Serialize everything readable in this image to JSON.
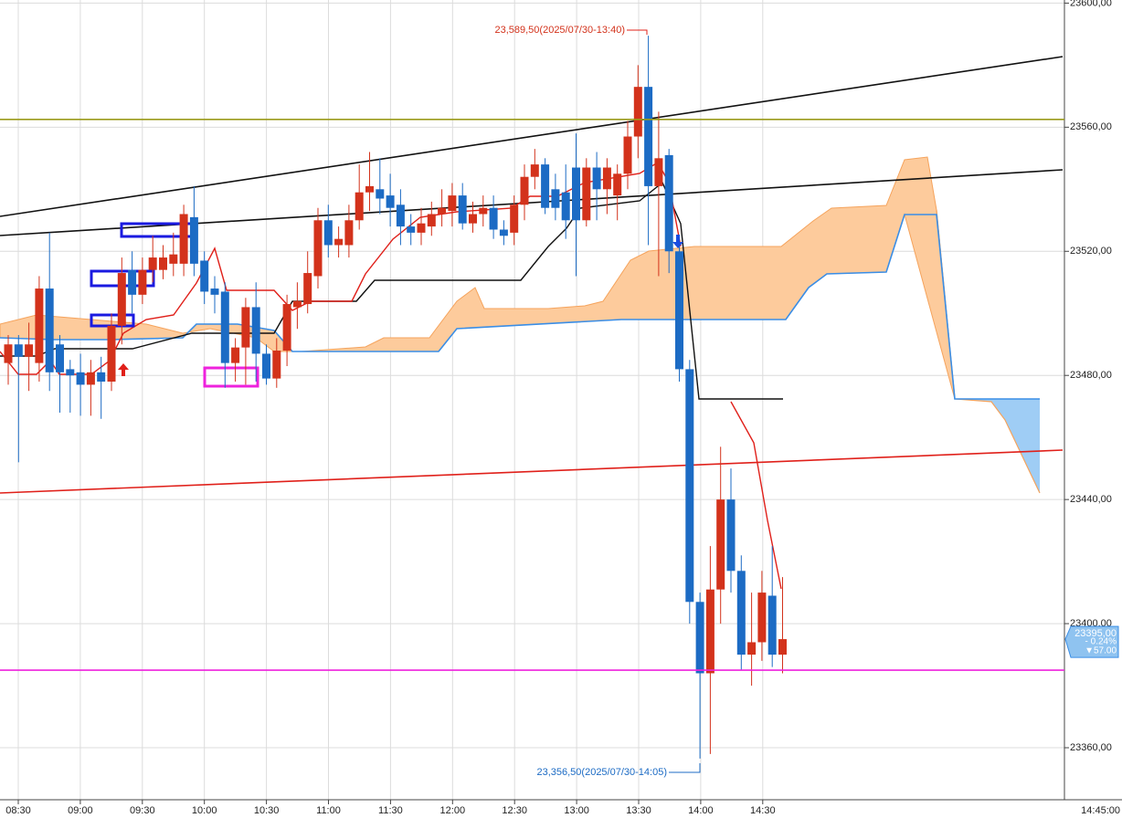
{
  "chart_data": {
    "type": "candlestick",
    "up_color": "#d3321b",
    "down_color": "#1c6bc4",
    "ylim": [
      23345,
      23601
    ],
    "yticks": [
      {
        "value": 23360,
        "label": "23360,00"
      },
      {
        "value": 23400,
        "label": "23400,00"
      },
      {
        "value": 23440,
        "label": "23440,00"
      },
      {
        "value": 23480,
        "label": "23480,00"
      },
      {
        "value": 23520,
        "label": "23520,00"
      },
      {
        "value": 23560,
        "label": "23560,00"
      },
      {
        "value": 23600,
        "label": "23600,00"
      }
    ],
    "x_labels": [
      "08:30",
      "09:00",
      "09:30",
      "10:00",
      "10:30",
      "11:00",
      "11:30",
      "12:00",
      "12:30",
      "13:00",
      "13:30",
      "14:00",
      "14:30"
    ],
    "x_end_label": "14:45:00",
    "grid": true,
    "open": [
      23484,
      23490,
      23486,
      23484,
      23508,
      23490,
      23482,
      23481,
      23477,
      23481,
      23478,
      23496,
      23514,
      23506,
      23514,
      23514,
      23516,
      23516,
      23531,
      23517,
      23508,
      23507,
      23484,
      23489,
      23502,
      23487,
      23479,
      23488,
      23502,
      23503,
      23512,
      23530,
      23522,
      23522,
      23530,
      23539,
      23540,
      23538,
      23535,
      23528,
      23526,
      23528,
      23532,
      23533,
      23538,
      23529,
      23532,
      23534,
      23527,
      23526,
      23535,
      23544,
      23548,
      23540,
      23539,
      23547,
      23530,
      23547,
      23540,
      23538,
      23545,
      23557,
      23573,
      23541,
      23551,
      23520,
      23482,
      23407,
      23384,
      23411,
      23440,
      23417,
      23390,
      23394,
      23409,
      23390
    ],
    "high": [
      23493,
      23493,
      23497,
      23512,
      23526,
      23493,
      23485,
      23487,
      23485,
      23486,
      23500,
      23518,
      23520,
      23518,
      23525,
      23522,
      23526,
      23535,
      23541,
      23520,
      23512,
      23510,
      23492,
      23505,
      23510,
      23490,
      23492,
      23506,
      23510,
      23520,
      23534,
      23535,
      23528,
      23535,
      23548,
      23552,
      23550,
      23545,
      23540,
      23532,
      23534,
      23536,
      23540,
      23542,
      23542,
      23536,
      23538,
      23538,
      23530,
      23538,
      23548,
      23553,
      23550,
      23545,
      23548,
      23558,
      23550,
      23552,
      23550,
      23548,
      23562,
      23580,
      23589.5,
      23565,
      23553,
      23522,
      23485,
      23410,
      23425,
      23457,
      23450,
      23422,
      23410,
      23417,
      23425,
      23415
    ],
    "low": [
      23477,
      23452,
      23475,
      23478,
      23475,
      23468,
      23468,
      23467,
      23467,
      23466,
      23475,
      23490,
      23500,
      23503,
      23510,
      23511,
      23512,
      23512,
      23512,
      23503,
      23500,
      23476,
      23478,
      23477,
      23478,
      23477,
      23476,
      23483,
      23495,
      23500,
      23508,
      23518,
      23518,
      23518,
      23527,
      23533,
      23532,
      23528,
      23522,
      23522,
      23522,
      23525,
      23528,
      23528,
      23527,
      23526,
      23528,
      23524,
      23522,
      23522,
      23530,
      23540,
      23532,
      23530,
      23524,
      23512,
      23528,
      23530,
      23532,
      23530,
      23540,
      23550,
      23522,
      23512,
      23513,
      23478,
      23400,
      23356.5,
      23358,
      23400,
      23410,
      23385,
      23380,
      23388,
      23386,
      23384
    ],
    "close": [
      23490,
      23486,
      23490,
      23508,
      23481,
      23481,
      23480,
      23477,
      23481,
      23478,
      23496,
      23513,
      23506,
      23514,
      23518,
      23518,
      23519,
      23532,
      23516,
      23507,
      23506,
      23484,
      23489,
      23502,
      23487,
      23479,
      23488,
      23503,
      23504,
      23513,
      23530,
      23522,
      23524,
      23530,
      23539,
      23541,
      23537,
      23534,
      23528,
      23526,
      23529,
      23532,
      23534,
      23538,
      23529,
      23532,
      23534,
      23527,
      23525,
      23535,
      23544,
      23548,
      23534,
      23534,
      23530,
      23530,
      23547,
      23540,
      23547,
      23545,
      23557,
      23573,
      23541,
      23550,
      23520,
      23482,
      23407,
      23384,
      23411,
      23440,
      23417,
      23390,
      23394,
      23410,
      23390,
      23395
    ],
    "price_lines": [
      {
        "color": "#9a9a1a",
        "value": 23562.5
      },
      {
        "color": "#ee22dd",
        "value": 23385
      }
    ],
    "high_annotation": "23,589,50(2025/07/30-13:40)",
    "low_annotation": "23,356,50(2025/07/30-14:05)",
    "last_price": {
      "value": 23395,
      "label": "23395,00"
    },
    "change_pct": "- 0.24%",
    "change": "▼57.00"
  }
}
